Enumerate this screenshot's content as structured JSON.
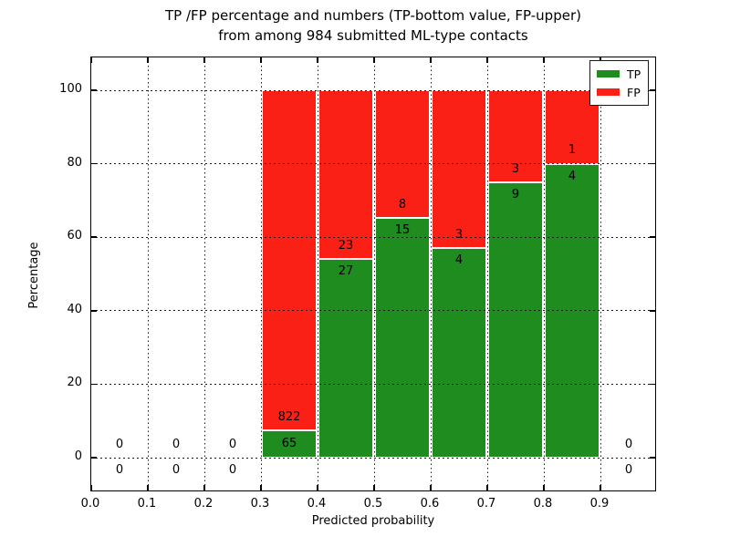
{
  "title": {
    "line1": "TP /FP percentage and numbers (TP-bottom value, FP-upper)",
    "line2": "from among 984 submitted ML-type contacts"
  },
  "axes": {
    "x_label": "Predicted probability",
    "y_label": "Percentage",
    "x_tick_labels": [
      "0.0",
      "0.1",
      "0.2",
      "0.3",
      "0.4",
      "0.5",
      "0.6",
      "0.7",
      "0.8",
      "0.9"
    ],
    "y_tick_labels": [
      "0",
      "20",
      "40",
      "60",
      "80",
      "100"
    ]
  },
  "legend": {
    "items": [
      {
        "label": "TP",
        "color": "#1e8c1e"
      },
      {
        "label": "FP",
        "color": "#fb2015"
      }
    ]
  },
  "colors": {
    "tp_green": "#1e8c1e",
    "fp_red": "#fb2015",
    "grid": "#1a1a1a",
    "background": "#ffffff"
  },
  "chart_data": {
    "type": "bar",
    "stacked": true,
    "title": "TP /FP percentage and numbers (TP-bottom value, FP-upper) from among 984 submitted ML-type contacts",
    "xlabel": "Predicted probability",
    "ylabel": "Percentage",
    "total_contacts": 984,
    "bin_starts": [
      0.0,
      0.1,
      0.2,
      0.3,
      0.4,
      0.5,
      0.6,
      0.7,
      0.8,
      0.9
    ],
    "bin_width": 0.1,
    "series": [
      {
        "name": "TP",
        "counts": [
          0,
          0,
          0,
          65,
          27,
          15,
          4,
          9,
          4,
          0
        ]
      },
      {
        "name": "FP",
        "counts": [
          0,
          0,
          0,
          822,
          23,
          8,
          3,
          3,
          1,
          0
        ]
      }
    ],
    "tp_percent": [
      0,
      0,
      0,
      7.33,
      54.0,
      65.22,
      57.14,
      75.0,
      80.0,
      0
    ],
    "xlim": [
      0.0,
      1.0
    ],
    "ylim": [
      -9.2,
      108.9
    ],
    "grid": "dotted",
    "legend_position": "upper right"
  }
}
